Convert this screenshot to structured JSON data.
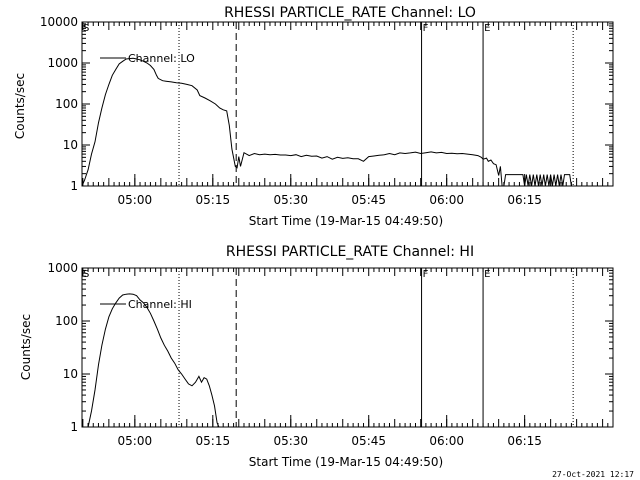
{
  "footer": {
    "date": "27-Oct-2021 12:17"
  },
  "chart_data": [
    {
      "type": "line",
      "title": "RHESSI PARTICLE_RATE Channel: LO",
      "xlabel": "Start Time (19-Mar-15 04:49:50)",
      "ylabel": "Counts/sec",
      "x_ticks": [
        "05:00",
        "05:15",
        "05:30",
        "05:45",
        "06:00",
        "06:15"
      ],
      "y_scale": "log",
      "y_ticks": [
        "1",
        "10",
        "100",
        "1000",
        "10000"
      ],
      "ylim": [
        1,
        10000
      ],
      "grid": false,
      "legend": {
        "placement": "top-left",
        "entry": "Channel: LO"
      },
      "markers": [
        {
          "label": "S",
          "style": "dotted",
          "time": "04:49:50"
        },
        {
          "label": "",
          "style": "dotted",
          "time": "05:08:30"
        },
        {
          "label": "",
          "style": "dashed",
          "time": "05:19:30"
        },
        {
          "label": "F",
          "style": "solid",
          "time": "05:55:10"
        },
        {
          "label": "E",
          "style": "solid",
          "time": "06:07:00"
        },
        {
          "label": "",
          "style": "dotted",
          "time": "06:24:20"
        }
      ],
      "series": [
        {
          "name": "Channel: LO",
          "points": [
            [
              "04:49:50",
              1
            ],
            [
              "04:50:20",
              1.4
            ],
            [
              "04:51:00",
              2.5
            ],
            [
              "04:51:40",
              6
            ],
            [
              "04:52:20",
              12
            ],
            [
              "04:53:00",
              35
            ],
            [
              "04:53:40",
              80
            ],
            [
              "04:54:20",
              170
            ],
            [
              "04:55:00",
              300
            ],
            [
              "04:55:40",
              500
            ],
            [
              "04:56:20",
              700
            ],
            [
              "04:57:00",
              950
            ],
            [
              "04:57:40",
              1100
            ],
            [
              "04:58:20",
              1250
            ],
            [
              "04:59:00",
              1280
            ],
            [
              "04:59:40",
              1300
            ],
            [
              "05:00:20",
              1250
            ],
            [
              "05:01:00",
              1200
            ],
            [
              "05:01:40",
              1100
            ],
            [
              "05:02:20",
              1000
            ],
            [
              "05:03:00",
              870
            ],
            [
              "05:03:40",
              700
            ],
            [
              "05:04:10",
              500
            ],
            [
              "05:04:30",
              420
            ],
            [
              "05:05:20",
              370
            ],
            [
              "05:06:00",
              360
            ],
            [
              "05:07:00",
              345
            ],
            [
              "05:08:00",
              330
            ],
            [
              "05:09:00",
              320
            ],
            [
              "05:10:00",
              300
            ],
            [
              "05:11:00",
              280
            ],
            [
              "05:12:00",
              220
            ],
            [
              "05:12:30",
              160
            ],
            [
              "05:13:30",
              140
            ],
            [
              "05:14:30",
              120
            ],
            [
              "05:15:30",
              100
            ],
            [
              "05:16:20",
              80
            ],
            [
              "05:17:00",
              72
            ],
            [
              "05:17:40",
              68
            ],
            [
              "05:18:10",
              30
            ],
            [
              "05:18:40",
              8
            ],
            [
              "05:19:20",
              3
            ],
            [
              "05:19:40",
              2.8
            ],
            [
              "05:20:00",
              5.2
            ],
            [
              "05:20:20",
              3
            ],
            [
              "05:21:00",
              6.5
            ],
            [
              "05:22:00",
              5.5
            ],
            [
              "05:23:00",
              6.2
            ],
            [
              "05:24:00",
              5.8
            ],
            [
              "05:25:00",
              6
            ],
            [
              "05:26:00",
              5.8
            ],
            [
              "05:27:00",
              5.9
            ],
            [
              "05:28:00",
              5.7
            ],
            [
              "05:29:00",
              5.7
            ],
            [
              "05:30:00",
              5.5
            ],
            [
              "05:31:00",
              5.8
            ],
            [
              "05:32:00",
              5.2
            ],
            [
              "05:33:00",
              5.6
            ],
            [
              "05:34:00",
              5.3
            ],
            [
              "05:35:00",
              5.4
            ],
            [
              "05:36:00",
              4.8
            ],
            [
              "05:37:00",
              5.2
            ],
            [
              "05:38:00",
              4.5
            ],
            [
              "05:39:00",
              5
            ],
            [
              "05:40:00",
              4.7
            ],
            [
              "05:41:00",
              4.9
            ],
            [
              "05:42:00",
              4.6
            ],
            [
              "05:43:00",
              4.6
            ],
            [
              "05:44:00",
              4
            ],
            [
              "05:45:00",
              5.2
            ],
            [
              "05:46:00",
              5.4
            ],
            [
              "05:47:00",
              5.6
            ],
            [
              "05:48:00",
              5.8
            ],
            [
              "05:49:00",
              6.2
            ],
            [
              "05:50:00",
              5.8
            ],
            [
              "05:51:00",
              6.4
            ],
            [
              "05:52:00",
              6.2
            ],
            [
              "05:53:00",
              6.4
            ],
            [
              "05:54:00",
              6.7
            ],
            [
              "05:55:00",
              6.2
            ],
            [
              "05:56:00",
              6.5
            ],
            [
              "05:57:00",
              6.8
            ],
            [
              "05:58:00",
              6.4
            ],
            [
              "05:59:00",
              6.6
            ],
            [
              "06:00:00",
              6.2
            ],
            [
              "06:01:00",
              6.3
            ],
            [
              "06:02:00",
              6.1
            ],
            [
              "06:03:00",
              6.2
            ],
            [
              "06:04:00",
              6
            ],
            [
              "06:05:00",
              5.8
            ],
            [
              "06:06:00",
              5.5
            ],
            [
              "06:06:40",
              5
            ],
            [
              "06:07:00",
              4.5
            ],
            [
              "06:07:40",
              4.8
            ],
            [
              "06:08:00",
              4
            ],
            [
              "06:08:30",
              4.3
            ],
            [
              "06:09:00",
              3.5
            ],
            [
              "06:09:30",
              3.3
            ],
            [
              "06:10:00",
              1.8
            ],
            [
              "06:10:20",
              3
            ],
            [
              "06:10:40",
              1
            ],
            [
              "06:11:00",
              1
            ],
            [
              "06:11:20",
              1.9
            ],
            [
              "06:13:00",
              1.9
            ],
            [
              "06:14:40",
              1.9
            ],
            [
              "06:15:00",
              1
            ],
            [
              "06:15:20",
              1.9
            ],
            [
              "06:15:40",
              1
            ],
            [
              "06:16:00",
              1.9
            ],
            [
              "06:16:20",
              1
            ],
            [
              "06:16:40",
              1.9
            ],
            [
              "06:17:00",
              1
            ],
            [
              "06:17:20",
              1.9
            ],
            [
              "06:17:40",
              1
            ],
            [
              "06:18:00",
              1.9
            ],
            [
              "06:18:20",
              1
            ],
            [
              "06:18:40",
              1.9
            ],
            [
              "06:19:00",
              1
            ],
            [
              "06:19:20",
              1.9
            ],
            [
              "06:19:40",
              1
            ],
            [
              "06:20:00",
              1.9
            ],
            [
              "06:20:20",
              1
            ],
            [
              "06:20:40",
              1.9
            ],
            [
              "06:21:00",
              1
            ],
            [
              "06:21:20",
              1.9
            ],
            [
              "06:21:40",
              1
            ],
            [
              "06:22:00",
              1.9
            ],
            [
              "06:22:20",
              1
            ],
            [
              "06:22:40",
              1.9
            ],
            [
              "06:23:00",
              1.9
            ],
            [
              "06:23:40",
              1.9
            ],
            [
              "06:24:00",
              1
            ]
          ]
        }
      ]
    },
    {
      "type": "line",
      "title": "RHESSI PARTICLE_RATE Channel: HI",
      "xlabel": "Start Time (19-Mar-15 04:49:50)",
      "ylabel": "Counts/sec",
      "x_ticks": [
        "05:00",
        "05:15",
        "05:30",
        "05:45",
        "06:00",
        "06:15"
      ],
      "y_scale": "log",
      "y_ticks": [
        "1",
        "10",
        "100",
        "1000"
      ],
      "ylim": [
        1,
        1000
      ],
      "grid": false,
      "legend": {
        "placement": "top-left",
        "entry": "Channel: HI"
      },
      "markers": [
        {
          "label": "S",
          "style": "dotted",
          "time": "04:49:50"
        },
        {
          "label": "",
          "style": "dotted",
          "time": "05:08:30"
        },
        {
          "label": "",
          "style": "dashed",
          "time": "05:19:30"
        },
        {
          "label": "F",
          "style": "solid",
          "time": "05:55:10"
        },
        {
          "label": "E",
          "style": "solid",
          "time": "06:07:00"
        },
        {
          "label": "",
          "style": "dotted",
          "time": "06:24:20"
        }
      ],
      "series": [
        {
          "name": "Channel: HI",
          "points": [
            [
              "04:51:00",
              1
            ],
            [
              "04:51:40",
              2
            ],
            [
              "04:52:20",
              5
            ],
            [
              "04:53:00",
              15
            ],
            [
              "04:53:40",
              35
            ],
            [
              "04:54:20",
              70
            ],
            [
              "04:55:00",
              120
            ],
            [
              "04:55:40",
              170
            ],
            [
              "04:56:20",
              220
            ],
            [
              "04:57:00",
              270
            ],
            [
              "04:57:40",
              310
            ],
            [
              "04:58:20",
              320
            ],
            [
              "04:59:00",
              325
            ],
            [
              "04:59:40",
              320
            ],
            [
              "05:00:20",
              300
            ],
            [
              "05:01:00",
              250
            ],
            [
              "05:01:40",
              220
            ],
            [
              "05:02:20",
              180
            ],
            [
              "05:03:00",
              140
            ],
            [
              "05:03:40",
              100
            ],
            [
              "05:04:20",
              70
            ],
            [
              "05:05:00",
              48
            ],
            [
              "05:05:40",
              35
            ],
            [
              "05:06:20",
              27
            ],
            [
              "05:07:00",
              20
            ],
            [
              "05:07:40",
              16
            ],
            [
              "05:08:20",
              12
            ],
            [
              "05:09:00",
              10
            ],
            [
              "05:09:40",
              8
            ],
            [
              "05:10:20",
              6.5
            ],
            [
              "05:11:00",
              6
            ],
            [
              "05:11:40",
              7
            ],
            [
              "05:12:20",
              9
            ],
            [
              "05:12:50",
              7
            ],
            [
              "05:13:20",
              8.5
            ],
            [
              "05:13:50",
              8
            ],
            [
              "05:14:20",
              6
            ],
            [
              "05:14:50",
              4
            ],
            [
              "05:15:20",
              2.5
            ],
            [
              "05:15:50",
              1.2
            ],
            [
              "05:16:10",
              1
            ]
          ]
        }
      ]
    }
  ]
}
